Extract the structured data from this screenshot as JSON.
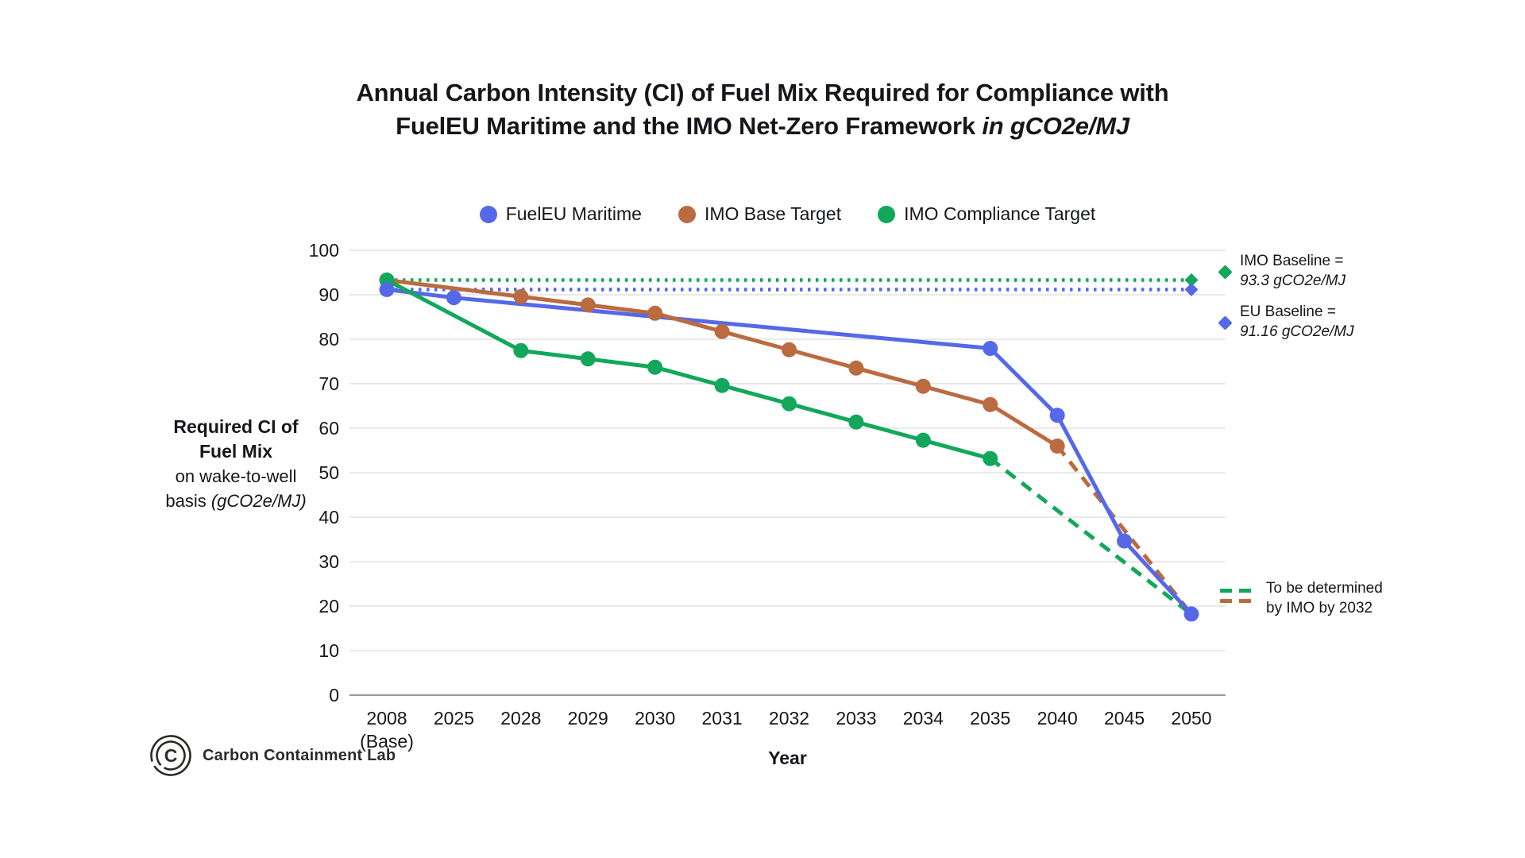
{
  "title": {
    "line1": "Annual Carbon Intensity (CI) of Fuel Mix Required for Compliance with",
    "line2_regular": "FuelEU Maritime and the IMO Net-Zero Framework ",
    "line2_italic": "in gCO2e/MJ"
  },
  "legend": {
    "items": [
      {
        "label": "FuelEU Maritime"
      },
      {
        "label": "IMO Base Target"
      },
      {
        "label": "IMO Compliance Target"
      }
    ]
  },
  "y_axis": {
    "title_line1": "Required CI of",
    "title_line2": "Fuel Mix",
    "title_line3": "on wake-to-well",
    "title_line4_prefix": "basis ",
    "title_line4_italic": "(gCO2e/MJ)",
    "ticks": [
      0,
      10,
      20,
      30,
      40,
      50,
      60,
      70,
      80,
      90,
      100
    ]
  },
  "x_axis": {
    "title": "Year"
  },
  "chart_data": {
    "type": "line",
    "title": "Annual Carbon Intensity (CI) of Fuel Mix Required for Compliance with FuelEU Maritime and the IMO Net-Zero Framework in gCO2e/MJ",
    "xlabel": "Year",
    "ylabel": "Required CI of Fuel Mix on wake-to-well basis (gCO2e/MJ)",
    "ylim": [
      0,
      100
    ],
    "grid": true,
    "legend_position": "top",
    "x": [
      {
        "label": "2008",
        "sublabel": "(Base)"
      },
      {
        "label": "2025"
      },
      {
        "label": "2028"
      },
      {
        "label": "2029"
      },
      {
        "label": "2030"
      },
      {
        "label": "2031"
      },
      {
        "label": "2032"
      },
      {
        "label": "2033"
      },
      {
        "label": "2034"
      },
      {
        "label": "2035"
      },
      {
        "label": "2040"
      },
      {
        "label": "2045"
      },
      {
        "label": "2050"
      }
    ],
    "series": [
      {
        "name": "FuelEU Maritime",
        "color": "#5569e8",
        "line_style": "solid",
        "solid": [
          [
            0,
            91.16
          ],
          [
            1,
            89.34
          ],
          [
            9,
            77.94
          ],
          [
            10,
            62.9
          ],
          [
            11,
            34.64
          ],
          [
            12,
            18.23
          ]
        ],
        "dashed": [],
        "markers": [
          [
            0,
            91.16
          ],
          [
            1,
            89.34
          ],
          [
            9,
            77.94
          ],
          [
            10,
            62.9
          ],
          [
            11,
            34.64
          ],
          [
            12,
            18.23
          ]
        ]
      },
      {
        "name": "IMO Base Target",
        "color": "#ba6b40",
        "line_style": "solid-then-dashed",
        "solid": [
          [
            0,
            93.3
          ],
          [
            2,
            89.57
          ],
          [
            3,
            87.7
          ],
          [
            4,
            85.84
          ],
          [
            5,
            81.73
          ],
          [
            6,
            77.63
          ],
          [
            7,
            73.52
          ],
          [
            8,
            69.42
          ],
          [
            9,
            65.31
          ],
          [
            10,
            55.98
          ]
        ],
        "dashed": [
          [
            10,
            55.98
          ],
          [
            12,
            18.2
          ]
        ],
        "markers": [
          [
            2,
            89.57
          ],
          [
            3,
            87.7
          ],
          [
            4,
            85.84
          ],
          [
            5,
            81.73
          ],
          [
            6,
            77.63
          ],
          [
            7,
            73.52
          ],
          [
            8,
            69.42
          ],
          [
            9,
            65.31
          ],
          [
            10,
            55.98
          ]
        ]
      },
      {
        "name": "IMO Compliance Target",
        "color": "#12a75a",
        "line_style": "solid-then-dashed",
        "solid": [
          [
            0,
            93.3
          ],
          [
            2,
            77.44
          ],
          [
            3,
            75.57
          ],
          [
            4,
            73.71
          ],
          [
            5,
            69.6
          ],
          [
            6,
            65.5
          ],
          [
            7,
            61.39
          ],
          [
            8,
            57.29
          ],
          [
            9,
            53.18
          ]
        ],
        "dashed": [
          [
            9,
            53.18
          ],
          [
            12,
            18.2
          ]
        ],
        "markers": [
          [
            0,
            93.3
          ],
          [
            2,
            77.44
          ],
          [
            3,
            75.57
          ],
          [
            4,
            73.71
          ],
          [
            5,
            69.6
          ],
          [
            6,
            65.5
          ],
          [
            7,
            61.39
          ],
          [
            8,
            57.29
          ],
          [
            9,
            53.18
          ]
        ]
      }
    ],
    "baselines": [
      {
        "label": "IMO Baseline",
        "value": 93.3,
        "color": "#12a75a",
        "style": "dotted",
        "end_marker": "diamond"
      },
      {
        "label": "EU Baseline",
        "value": 91.16,
        "color": "#5569e8",
        "style": "dotted",
        "end_marker": "diamond"
      }
    ]
  },
  "annotations": {
    "imo_baseline": {
      "line1": "IMO Baseline =",
      "line2": "93.3 gCO2e/MJ"
    },
    "eu_baseline": {
      "line1": "EU Baseline =",
      "line2": "91.16 gCO2e/MJ"
    },
    "tbd": {
      "line1": "To be determined",
      "line2": "by IMO by 2032"
    }
  },
  "footer": {
    "logo_letter": "C",
    "logo_text": "Carbon Containment Lab"
  },
  "colors": {
    "fueleu_blue": "#5569e8",
    "imo_base_brown": "#ba6b40",
    "imo_compliance_green": "#12a75a",
    "gridline": "#dcdcdc",
    "axis_line": "#8a8a8a",
    "text": "#15171b"
  }
}
